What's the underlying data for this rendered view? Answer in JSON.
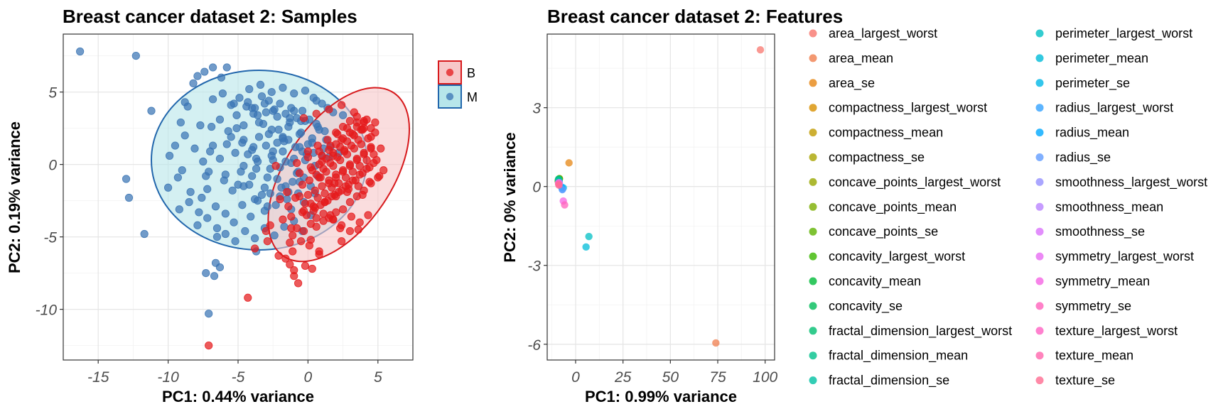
{
  "chart_data": [
    {
      "type": "scatter",
      "title": "Breast cancer dataset 2: Samples",
      "xlabel": "PC1: 0.44% variance",
      "ylabel": "PC2: 0.19% variance",
      "xlim": [
        -17.5,
        7.5
      ],
      "ylim": [
        -13.5,
        9
      ],
      "xticks": [
        -15,
        -10,
        -5,
        0,
        5
      ],
      "yticks": [
        -10,
        -5,
        0,
        5
      ],
      "xtick_labels": [
        "-15",
        "-10",
        "-5",
        "0",
        "5"
      ],
      "ytick_labels": [
        "-10",
        "-5",
        "0",
        "5"
      ],
      "legend": {
        "position": "right",
        "entries": [
          {
            "label": "B",
            "color": "#e41a1c"
          },
          {
            "label": "M",
            "color": "#377eb8"
          }
        ]
      },
      "ellipses": [
        {
          "group": "B",
          "cx": 2.2,
          "cy": -0.7,
          "rx": 3.8,
          "ry": 6.8,
          "angle_deg": 34,
          "fill": "#f7c7c8",
          "stroke": "#d7191c"
        },
        {
          "group": "M",
          "cx": -3.5,
          "cy": 0.3,
          "rx": 7.7,
          "ry": 6.2,
          "angle_deg": 0,
          "fill": "#b7e6ea",
          "stroke": "#2166ac"
        }
      ],
      "series": [
        {
          "name": "M",
          "color": "#3a74b4",
          "x": [
            -16.3,
            -12.3,
            -13,
            -12.8,
            -11.7,
            -11.2,
            -9.5,
            -9.9,
            -9.1,
            -9.3,
            -8.8,
            -8.6,
            -8.2,
            -7.9,
            -7.4,
            -7.7,
            -7.1,
            -7.0,
            -6.8,
            -6.2,
            -5.8,
            -5.3,
            -4.4,
            -3.9,
            -3.6,
            -3.1,
            -2.5,
            -1.8,
            -1.3,
            -0.5,
            0.4,
            1.0,
            1.8,
            2.5,
            -10.0,
            -9.0,
            -8.4,
            -7.6,
            -7.3,
            -6.8,
            -6.3,
            -5.9,
            -5.5,
            -5.1,
            -4.7,
            -4.3,
            -3.9,
            -3.6,
            -3.2,
            -2.8,
            -2.5,
            -2.1,
            -1.7,
            -1.3,
            -0.9,
            -0.5,
            -0.1,
            0.3,
            0.7,
            1.1,
            1.5,
            -9.2,
            -8.5,
            -7.8,
            -7.2,
            -6.6,
            -6.0,
            -5.4,
            -4.8,
            -4.2,
            -3.7,
            -3.3,
            -2.9,
            -2.5,
            -2.0,
            -1.6,
            -1.2,
            -0.8,
            -0.4,
            0.0,
            0.5,
            1.0,
            1.6,
            2.2,
            -8.8,
            -8.1,
            -7.5,
            -6.9,
            -6.3,
            -5.7,
            -5.1,
            -4.6,
            -4.0,
            -3.5,
            -3.0,
            -2.6,
            -2.2,
            -1.8,
            -1.4,
            -1.0,
            -0.6,
            -0.2,
            0.3,
            0.8,
            1.3,
            -7.9,
            -7.2,
            -6.5,
            -5.9,
            -5.3,
            -4.7,
            -4.1,
            -3.6,
            -3.1,
            -2.7,
            -2.3,
            -1.9,
            -1.5,
            -1.1,
            -0.7,
            -0.3,
            0.2,
            0.7,
            -6.8,
            -6.1,
            -5.5,
            -4.9,
            -4.3,
            -3.8,
            -3.3,
            -2.8,
            -2.4,
            -2.0,
            -1.6,
            -1.2,
            -0.8,
            -0.4,
            0.1,
            0.6,
            1.2,
            -5.8,
            -5.2,
            -4.6,
            -4.0,
            -3.5,
            -3.0,
            -2.6,
            -2.2,
            -1.8,
            -1.4,
            -1.0,
            -0.6,
            -0.2,
            0.4,
            -6.5,
            -5.9,
            -5.2,
            -4.5,
            -3.8,
            -3.1,
            -2.4,
            -1.7,
            -1.0,
            -0.4,
            0.2,
            -4.2,
            -3.4,
            -2.6,
            -1.8,
            -1.0,
            -0.2,
            0.6,
            1.4,
            -5.0,
            -4.0,
            -3.1,
            -2.2,
            -1.4,
            -0.6,
            -3.8,
            -2.9,
            -2.0,
            -1.2,
            -0.3,
            0.5,
            -4.6,
            -3.7,
            -2.7,
            -1.6,
            -0.7,
            -7.3,
            -6.3,
            -6.6,
            -6.7,
            -7.1,
            -4.6,
            -3.7
          ],
          "y": [
            7.8,
            7.5,
            -1.0,
            -2.3,
            -4.8,
            3.7,
            1.3,
            0.6,
            2.9,
            -0.9,
            4.3,
            4.0,
            5.6,
            6.1,
            6.4,
            2.7,
            -0.5,
            0.9,
            6.7,
            6.0,
            6.7,
            4.2,
            4.0,
            3.5,
            3.4,
            4.2,
            3.7,
            1.8,
            3.2,
            3.0,
            4.6,
            4.2,
            3.6,
            3.4,
            -1.6,
            -0.4,
            -1.9,
            -2.3,
            -0.8,
            1.3,
            0.4,
            -0.7,
            1.9,
            2.5,
            1.5,
            0.7,
            1.2,
            0.2,
            2.8,
            2.1,
            0.9,
            2.4,
            1.6,
            2.9,
            1.2,
            2.2,
            0.7,
            1.8,
            2.6,
            1.1,
            0.5,
            -3.1,
            -2.6,
            -3.3,
            -1.7,
            -2.9,
            -1.1,
            -1.8,
            -0.5,
            -1.4,
            -0.3,
            -2.1,
            -0.9,
            0.3,
            -0.2,
            -1.5,
            0.1,
            -0.6,
            0.9,
            1.4,
            -0.1,
            0.6,
            1.2,
            0.8,
            2.0,
            1.1,
            0.2,
            2.6,
            3.1,
            2.3,
            3.4,
            2.7,
            3.9,
            2.9,
            3.6,
            2.4,
            3.3,
            1.9,
            2.6,
            3.7,
            2.1,
            3.0,
            1.5,
            2.4,
            1.7,
            -4.2,
            -3.7,
            -4.4,
            -3.4,
            -4.0,
            -2.8,
            -3.6,
            -2.5,
            -3.2,
            -2.0,
            -2.8,
            -1.6,
            -2.4,
            -1.2,
            -2.0,
            -0.9,
            -1.5,
            -0.8,
            4.5,
            4.9,
            4.1,
            4.6,
            4.3,
            3.9,
            4.7,
            4.4,
            3.8,
            4.2,
            3.5,
            3.9,
            3.2,
            3.7,
            3.1,
            2.8,
            2.3,
            1.4,
            0.8,
            1.7,
            1.0,
            1.9,
            1.3,
            0.6,
            1.5,
            0.9,
            1.7,
            0.4,
            1.2,
            0.3,
            0.8,
            -5.0,
            -4.8,
            -5.3,
            -4.6,
            -5.1,
            -4.4,
            -4.9,
            -4.3,
            -3.9,
            -4.6,
            -3.5,
            5.2,
            5.5,
            5.0,
            5.3,
            4.9,
            5.1,
            4.4,
            3.9,
            -1.4,
            -0.8,
            -1.6,
            -1.0,
            -1.9,
            -1.2,
            -2.4,
            -2.9,
            -2.2,
            -3.1,
            -2.6,
            -2.0,
            -0.1,
            0.4,
            -0.3,
            0.2,
            -0.5,
            -7.5,
            -7.1,
            -6.8,
            -7.7,
            -10.3,
            -1.5,
            -6.0
          ]
        },
        {
          "name": "B",
          "color": "#e41a1c",
          "x": [
            -7.1,
            -4.3,
            -2.1,
            -1.6,
            -1.3,
            -1.0,
            -0.7,
            -0.2,
            0.3,
            0.8,
            0.1,
            -0.5,
            -1.1,
            -0.8,
            -0.3,
            0.2,
            0.6,
            1.1,
            1.5,
            2.0,
            2.5,
            3.0,
            3.5,
            4.0,
            4.5,
            5.0,
            5.4,
            -0.1,
            0.4,
            0.9,
            1.4,
            1.9,
            2.4,
            2.9,
            3.4,
            3.9,
            4.4,
            4.9,
            0.2,
            0.7,
            1.2,
            1.7,
            2.2,
            2.7,
            3.2,
            3.7,
            4.2,
            4.7,
            5.2,
            0.5,
            1.0,
            1.5,
            2.0,
            2.5,
            3.0,
            3.5,
            4.0,
            4.5,
            0.8,
            1.3,
            1.8,
            2.3,
            2.8,
            3.3,
            3.8,
            4.3,
            4.8,
            -0.4,
            0.1,
            0.6,
            1.1,
            1.6,
            2.1,
            2.6,
            3.1,
            3.6,
            0.3,
            0.8,
            1.3,
            1.8,
            2.3,
            2.8,
            3.3,
            3.8,
            1.0,
            1.5,
            2.0,
            2.5,
            3.0,
            3.5,
            4.0,
            1.2,
            1.7,
            2.2,
            2.7,
            3.2,
            3.7,
            4.2,
            4.7,
            1.5,
            2.0,
            2.5,
            3.0,
            3.5,
            4.0,
            4.5,
            2.0,
            2.5,
            3.0,
            3.5,
            4.0,
            4.5,
            -1.5,
            -0.9,
            -0.2,
            0.5,
            1.1,
            1.8,
            2.4,
            3.0,
            3.7,
            4.3,
            0.0,
            0.7,
            1.4,
            2.1,
            2.8,
            3.5,
            -0.6,
            0.2,
            1.0,
            1.8,
            2.6,
            -1.2,
            -0.4,
            0.4,
            1.2,
            2.0,
            2.8,
            3.6,
            4.4,
            5.1,
            -0.8,
            0.0,
            0.8,
            1.6,
            2.4,
            3.2,
            4.0,
            4.8,
            -0.3,
            0.6,
            1.5,
            2.4,
            3.3,
            4.2,
            0.9,
            1.9,
            2.9,
            3.9,
            -2.9,
            -3.8,
            -2.7,
            -1.8,
            -1.4,
            -0.6,
            0.0,
            0.6,
            1.6,
            2.3,
            3.6,
            3.1,
            4.5,
            3.9,
            -2.3,
            -2.0,
            -1.2,
            -1.3,
            -1.1,
            -0.3,
            0.2,
            0.8,
            1.8,
            -1.0,
            -3.0,
            2.4
          ],
          "y": [
            -12.5,
            -9.2,
            -6.3,
            -6.5,
            -6.9,
            -7.7,
            -8.2,
            -7.0,
            -7.2,
            -6.2,
            -5.6,
            -5.3,
            -4.9,
            -4.4,
            -4.6,
            -4.1,
            -4.3,
            -3.9,
            -3.7,
            -3.3,
            -3.1,
            -2.6,
            -2.2,
            -1.8,
            -1.3,
            -0.9,
            -0.4,
            -3.5,
            -3.2,
            -2.8,
            -2.5,
            -2.1,
            -1.8,
            -1.4,
            -1.1,
            -0.6,
            -0.2,
            0.3,
            -2.7,
            -2.3,
            -2.0,
            -1.6,
            -1.3,
            -0.9,
            -0.5,
            -0.1,
            0.3,
            0.7,
            1.1,
            -1.8,
            -1.5,
            -1.1,
            -0.7,
            -0.4,
            0.0,
            0.4,
            0.8,
            1.2,
            -0.9,
            -0.5,
            -0.1,
            0.3,
            0.7,
            1.1,
            1.4,
            1.8,
            2.2,
            -1.4,
            -1.1,
            -0.7,
            -0.3,
            0.1,
            0.5,
            0.9,
            1.3,
            1.7,
            -0.4,
            0.0,
            0.4,
            0.8,
            1.2,
            1.6,
            2.0,
            2.4,
            0.6,
            1.0,
            1.4,
            1.8,
            2.2,
            2.6,
            3.0,
            -2.6,
            -2.2,
            -1.9,
            -1.5,
            -1.1,
            -0.7,
            -0.3,
            0.1,
            -1.3,
            -0.9,
            -0.5,
            -0.1,
            0.3,
            0.7,
            1.1,
            2.2,
            2.6,
            3.0,
            3.3,
            2.9,
            2.5,
            -1.9,
            -2.3,
            -2.7,
            -3.0,
            -3.4,
            -3.8,
            -4.2,
            -4.6,
            -4.0,
            -3.5,
            0.9,
            1.3,
            1.7,
            2.1,
            2.5,
            2.9,
            -0.6,
            -0.2,
            0.2,
            0.6,
            1.0,
            -3.6,
            -3.3,
            -2.9,
            -2.6,
            -2.2,
            -1.9,
            -1.5,
            -1.2,
            -0.8,
            0.1,
            0.5,
            0.9,
            1.3,
            1.7,
            2.1,
            2.5,
            2.9,
            3.2,
            3.5,
            3.8,
            4.1,
            3.6,
            3.1,
            -0.9,
            -1.3,
            -1.7,
            -2.1,
            -5.3,
            -5.8,
            -4.2,
            -3.8,
            -2.9,
            -2.2,
            -2.1,
            -3.7,
            -3.5,
            -4.4,
            -4.5,
            -3.6,
            1.9,
            2.4,
            -0.1,
            -2.4,
            -4.4,
            -5.4,
            -6.0,
            -3.2,
            -5.2,
            -6.0,
            -3.8,
            -7.3,
            -4.6,
            -5.3
          ]
        }
      ]
    },
    {
      "type": "scatter",
      "title": "Breast cancer dataset 2: Features",
      "xlabel": "PC1: 0.99% variance",
      "ylabel": "PC2: 0% variance",
      "xlim": [
        -15,
        105
      ],
      "ylim": [
        -6.6,
        5.8
      ],
      "xticks": [
        0,
        25,
        50,
        75,
        100
      ],
      "yticks": [
        -6,
        -3,
        0,
        3
      ],
      "xtick_labels": [
        "0",
        "25",
        "50",
        "75",
        "100"
      ],
      "ytick_labels": [
        "-6",
        "-3",
        "0",
        "3"
      ],
      "legend": {
        "position": "right"
      },
      "series": [
        {
          "name": "area_largest_worst",
          "color": "#F8766D",
          "x": 97.5,
          "y": 5.2
        },
        {
          "name": "area_mean",
          "color": "#F07E4D",
          "x": 74.0,
          "y": -5.95
        },
        {
          "name": "area_se",
          "color": "#E68613",
          "x": -3.5,
          "y": 0.9
        },
        {
          "name": "compactness_largest_worst",
          "color": "#D89000",
          "x": -8.5,
          "y": 0.3
        },
        {
          "name": "compactness_mean",
          "color": "#C09B00",
          "x": -8.8,
          "y": 0.22
        },
        {
          "name": "compactness_se",
          "color": "#A9A400",
          "x": -9.0,
          "y": 0.25
        },
        {
          "name": "concave_points_largest_worst",
          "color": "#99A800",
          "x": -8.7,
          "y": 0.28
        },
        {
          "name": "concave_points_mean",
          "color": "#7CAE00",
          "x": -9.2,
          "y": 0.2
        },
        {
          "name": "concave_points_se",
          "color": "#5EB300",
          "x": -8.9,
          "y": 0.18
        },
        {
          "name": "concavity_largest_worst",
          "color": "#39B600",
          "x": -8.6,
          "y": 0.3
        },
        {
          "name": "concavity_mean",
          "color": "#00BA38",
          "x": -8.8,
          "y": 0.26
        },
        {
          "name": "concavity_se",
          "color": "#00BC59",
          "x": -9.1,
          "y": 0.24
        },
        {
          "name": "fractal_dimension_largest_worst",
          "color": "#00BE70",
          "x": -8.7,
          "y": 0.2
        },
        {
          "name": "fractal_dimension_mean",
          "color": "#00C08B",
          "x": -9.0,
          "y": 0.28
        },
        {
          "name": "fractal_dimension_se",
          "color": "#00C1A3",
          "x": -8.8,
          "y": 0.23
        },
        {
          "name": "perimeter_largest_worst",
          "color": "#00BFC4",
          "x": 7.0,
          "y": -1.9
        },
        {
          "name": "perimeter_mean",
          "color": "#00BCD8",
          "x": 5.5,
          "y": -2.3
        },
        {
          "name": "perimeter_se",
          "color": "#00B8E7",
          "x": -6.5,
          "y": -0.05
        },
        {
          "name": "radius_largest_worst",
          "color": "#35A2FF",
          "x": -7.0,
          "y": -0.1
        },
        {
          "name": "radius_mean",
          "color": "#00A9FF",
          "x": -7.4,
          "y": -0.02
        },
        {
          "name": "radius_se",
          "color": "#619CFF",
          "x": -7.0,
          "y": -0.12
        },
        {
          "name": "smoothness_largest_worst",
          "color": "#9590FF",
          "x": -8.6,
          "y": 0.15
        },
        {
          "name": "smoothness_mean",
          "color": "#B983FF",
          "x": -8.9,
          "y": 0.12
        },
        {
          "name": "smoothness_se",
          "color": "#DB72FB",
          "x": -8.7,
          "y": 0.1
        },
        {
          "name": "symmetry_largest_worst",
          "color": "#E76BF3",
          "x": -9.0,
          "y": 0.14
        },
        {
          "name": "symmetry_mean",
          "color": "#F564E3",
          "x": -6.5,
          "y": -0.55
        },
        {
          "name": "symmetry_se",
          "color": "#FF62BC",
          "x": -5.8,
          "y": -0.7
        },
        {
          "name": "texture_largest_worst",
          "color": "#FF61C3",
          "x": -8.8,
          "y": 0.08
        },
        {
          "name": "texture_mean",
          "color": "#FF65AC",
          "x": -9.0,
          "y": 0.1
        },
        {
          "name": "texture_se",
          "color": "#FF6C91",
          "x": -8.8,
          "y": 0.05
        }
      ]
    }
  ]
}
